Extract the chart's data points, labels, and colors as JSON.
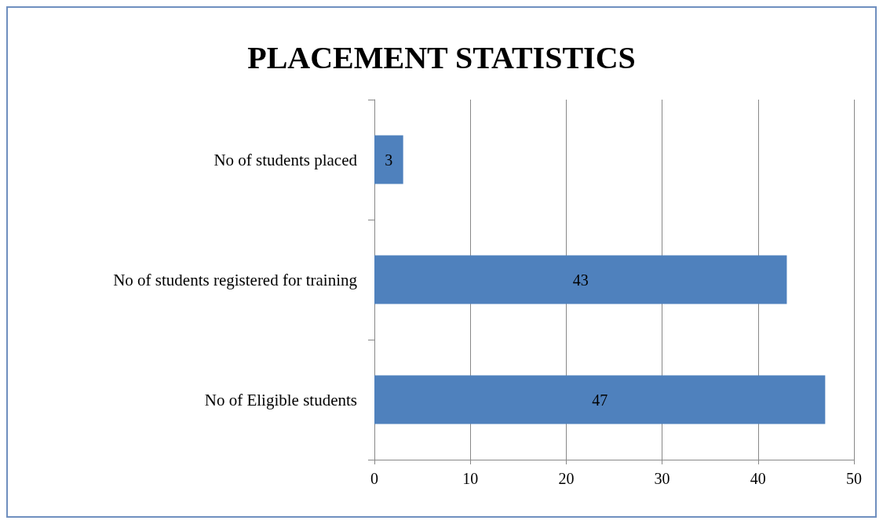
{
  "chart_data": {
    "type": "bar",
    "orientation": "horizontal",
    "title": "PLACEMENT STATISTICS",
    "categories": [
      "No of students placed",
      "No of students registered for training",
      "No of Eligible students"
    ],
    "values": [
      3,
      43,
      47
    ],
    "color": "#4f81bd",
    "xlim": [
      0,
      50
    ],
    "xticks": [
      0,
      10,
      20,
      30,
      40,
      50
    ],
    "grid": "x",
    "data_labels": true
  }
}
